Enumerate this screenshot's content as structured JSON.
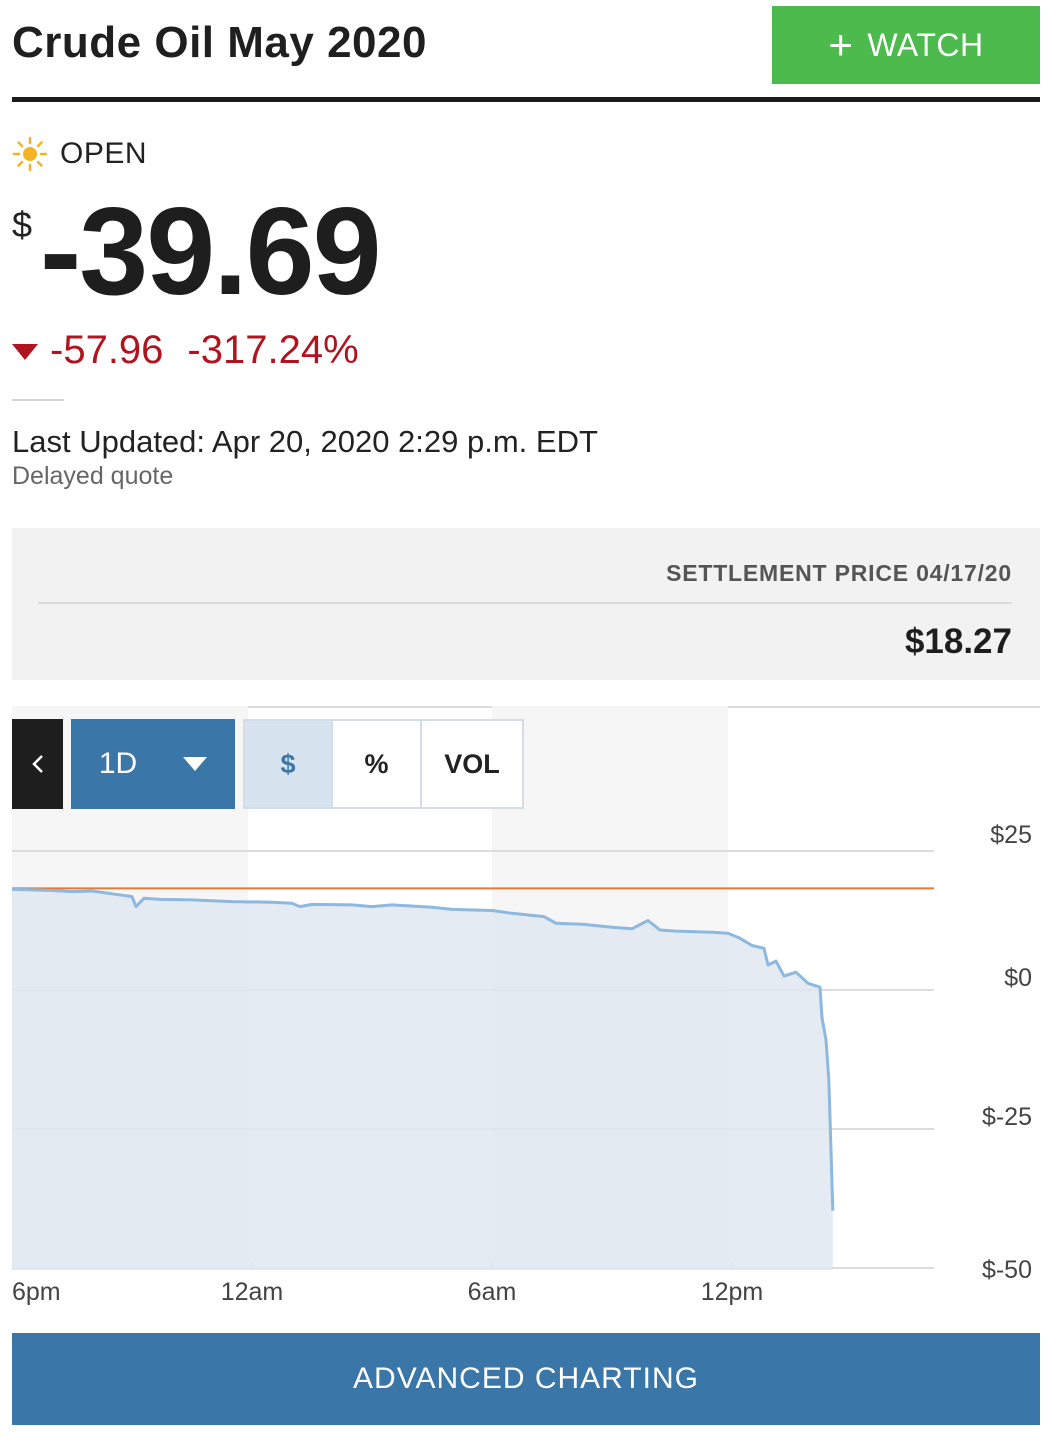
{
  "header": {
    "title": "Crude Oil May 2020",
    "watch_label": "WATCH",
    "watch_icon": "plus-icon"
  },
  "status": {
    "icon": "sun-icon",
    "label": "OPEN"
  },
  "quote": {
    "currency": "$",
    "price": "-39.69",
    "change": "-57.96",
    "change_percent": "-317.24%",
    "change_icon": "down-triangle-icon",
    "last_updated": "Last Updated: Apr 20, 2020 2:29 p.m. EDT",
    "delayed": "Delayed quote"
  },
  "settlement": {
    "label": "SETTLEMENT PRICE 04/17/20",
    "value": "$18.27"
  },
  "chart_controls": {
    "back_icon": "chevron-left-icon",
    "range": "1D",
    "options": [
      "$",
      "%",
      "VOL"
    ],
    "selected": "$"
  },
  "chart_data": {
    "type": "area",
    "title": "",
    "xlabel": "",
    "ylabel": "",
    "x_ticks": [
      "6pm",
      "12am",
      "6am",
      "12pm"
    ],
    "y_ticks": [
      "$25",
      "$0",
      "$-25",
      "$-50"
    ],
    "y_tick_values": [
      25,
      0,
      -25,
      -50
    ],
    "ylim": [
      -52,
      28
    ],
    "x_range_hours": [
      0,
      23
    ],
    "reference_line": {
      "value": 18.27,
      "color": "#e07b39"
    },
    "series": [
      {
        "color": "#8db8e0",
        "fill": "#dfe8f1",
        "points": [
          [
            0,
            18.1
          ],
          [
            0.5,
            18.0
          ],
          [
            1,
            17.9
          ],
          [
            1.5,
            17.7
          ],
          [
            2.0,
            17.8
          ],
          [
            2.5,
            17.3
          ],
          [
            3.0,
            16.8
          ],
          [
            3.1,
            15.0
          ],
          [
            3.3,
            16.5
          ],
          [
            3.7,
            16.3
          ],
          [
            4.5,
            16.2
          ],
          [
            5.5,
            15.9
          ],
          [
            6.5,
            15.8
          ],
          [
            7.0,
            15.6
          ],
          [
            7.2,
            15.0
          ],
          [
            7.5,
            15.4
          ],
          [
            8.5,
            15.3
          ],
          [
            9.0,
            15.0
          ],
          [
            9.5,
            15.3
          ],
          [
            10.5,
            14.9
          ],
          [
            11.0,
            14.5
          ],
          [
            12.0,
            14.3
          ],
          [
            12.5,
            13.8
          ],
          [
            13.3,
            13.2
          ],
          [
            13.6,
            12.0
          ],
          [
            14.3,
            11.8
          ],
          [
            15.0,
            11.3
          ],
          [
            15.5,
            11.0
          ],
          [
            15.9,
            12.5
          ],
          [
            16.2,
            10.8
          ],
          [
            16.6,
            10.6
          ],
          [
            17.0,
            10.5
          ],
          [
            17.5,
            10.4
          ],
          [
            17.9,
            10.2
          ],
          [
            18.2,
            9.3
          ],
          [
            18.5,
            8.0
          ],
          [
            18.8,
            7.5
          ],
          [
            18.9,
            4.5
          ],
          [
            19.1,
            5.2
          ],
          [
            19.3,
            2.5
          ],
          [
            19.6,
            3.2
          ],
          [
            19.9,
            1.2
          ],
          [
            20.2,
            0.5
          ],
          [
            20.25,
            -5.0
          ],
          [
            20.35,
            -9.0
          ],
          [
            20.42,
            -16.0
          ],
          [
            20.48,
            -30.0
          ],
          [
            20.52,
            -39.69
          ]
        ]
      }
    ],
    "sessions_shaded": [
      [
        0,
        5.9
      ],
      [
        12.0,
        17.9
      ]
    ]
  },
  "advanced_button": "ADVANCED CHARTING"
}
